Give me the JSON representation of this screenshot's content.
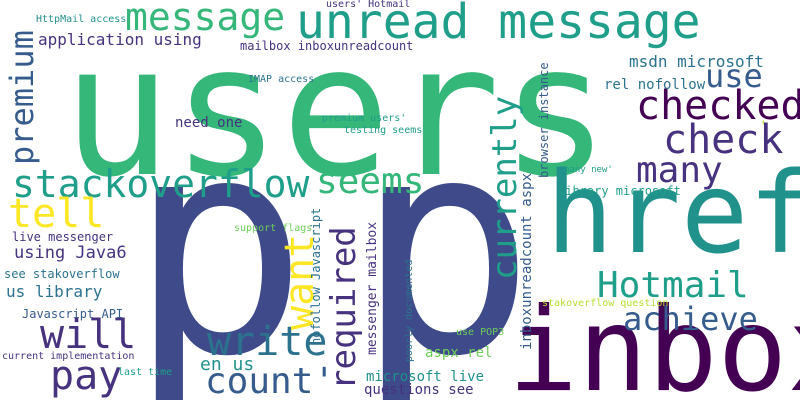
{
  "colors": {
    "purple": "#46327e",
    "deep_purple": "#440154",
    "indigo": "#3e4a89",
    "slate": "#365c8d",
    "blue": "#2c728e",
    "teal": "#21918c",
    "sea": "#1f9e89",
    "green": "#35b779",
    "light_green": "#6ece58",
    "lime": "#b5de2b",
    "yellow": "#fde725"
  },
  "words": {
    "users": "users",
    "p1": "p",
    "p2": "p",
    "inbox": "inbox",
    "href": "href",
    "unread_message": "unread message",
    "message": "message",
    "premium": "premium",
    "checked": "checked",
    "check": "check",
    "use": "use",
    "stackoverflow": "stackoverflow",
    "seems": "seems",
    "many": "many",
    "tell": "tell",
    "currently": "currently",
    "hotmail": "Hotmail",
    "want": "want",
    "required": "required",
    "achieve": "achieve",
    "will": "will",
    "write": "write",
    "pay": "pay",
    "count": "count'",
    "application_using": "application using",
    "msdn_microsoft": "msdn microsoft",
    "using_java6": "using Java6",
    "us_library": "us library",
    "en_us": "en us",
    "rel_nofollow": "rel nofollow",
    "need_one": "need one",
    "live_messenger": "live messenger",
    "see_stakoverflow": "see stakoverflow",
    "javascript_api": "Javascript API",
    "current_implementation": "current implementation",
    "last_time": "last time",
    "httpmail_access": "HttpMail access",
    "users_hotmail": "users' Hotmail",
    "mailbox_inboxunreadcount": "mailbox inboxunreadcount",
    "imap_access": "IMAP access",
    "premium_users": "premium users'",
    "testing_seems": "testing seems",
    "nofollow_javascript": "nofollow Javascript",
    "messenger_mailbox": "messenger mailbox",
    "poorly_documented": "poorly documented",
    "aspx_rel": "aspx rel",
    "microsoft_live": "microsoft live",
    "questions_see": "questions see",
    "use_pop3": "use POP3",
    "inboxunreadcount_aspx": "inboxunreadcount aspx",
    "browser_instance": "browser instance",
    "library_microsoft": "library microsoft",
    "many_new": "many new'",
    "stakoverflow_question": "stakoverflow question",
    "support_flags": "support flags",
    "quote_mark": "'"
  }
}
